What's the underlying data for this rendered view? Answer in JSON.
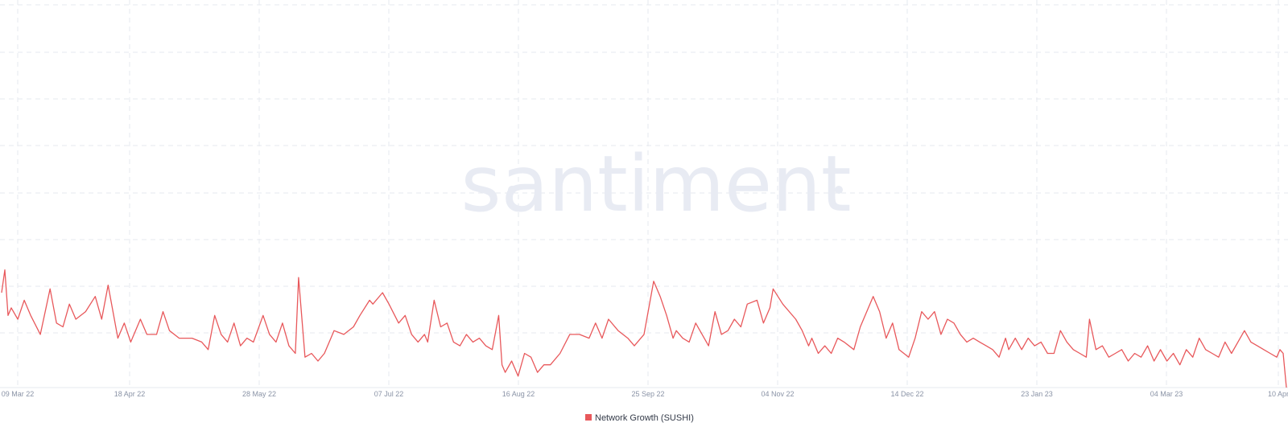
{
  "watermark": "santiment",
  "legend": {
    "label": "Network Growth (SUSHI)",
    "color": "#e8585b"
  },
  "colors": {
    "grid": "#e6e9ef",
    "tick_text": "#8a93a6",
    "watermark": "#e8ebf3"
  },
  "chart_data": {
    "type": "line",
    "xlabels": [
      "09 Mar 22",
      "18 Apr 22",
      "28 May 22",
      "07 Jul 22",
      "16 Aug 22",
      "25 Sep 22",
      "04 Nov 22",
      "14 Dec 22",
      "23 Jan 23",
      "04 Mar 23",
      "10 Apr"
    ],
    "x_range": [
      "2022-03-08",
      "2023-04-10"
    ],
    "ylim": [
      0,
      100
    ],
    "grid": true,
    "legend_position": "bottom-center",
    "series": [
      {
        "name": "Network Growth (SUSHI)",
        "color": "#e8585b",
        "points": [
          [
            "2022-03-08",
            25
          ],
          [
            "2022-03-09",
            31
          ],
          [
            "2022-03-10",
            19
          ],
          [
            "2022-03-11",
            21
          ],
          [
            "2022-03-13",
            18
          ],
          [
            "2022-03-15",
            23
          ],
          [
            "2022-03-17",
            19
          ],
          [
            "2022-03-20",
            14
          ],
          [
            "2022-03-23",
            26
          ],
          [
            "2022-03-25",
            17
          ],
          [
            "2022-03-27",
            16
          ],
          [
            "2022-03-29",
            22
          ],
          [
            "2022-03-31",
            18
          ],
          [
            "2022-04-03",
            20
          ],
          [
            "2022-04-06",
            24
          ],
          [
            "2022-04-08",
            18
          ],
          [
            "2022-04-10",
            27
          ],
          [
            "2022-04-13",
            13
          ],
          [
            "2022-04-15",
            17
          ],
          [
            "2022-04-17",
            12
          ],
          [
            "2022-04-20",
            18
          ],
          [
            "2022-04-22",
            14
          ],
          [
            "2022-04-25",
            14
          ],
          [
            "2022-04-27",
            20
          ],
          [
            "2022-04-29",
            15
          ],
          [
            "2022-05-02",
            13
          ],
          [
            "2022-05-06",
            13
          ],
          [
            "2022-05-09",
            12
          ],
          [
            "2022-05-11",
            10
          ],
          [
            "2022-05-13",
            19
          ],
          [
            "2022-05-15",
            14
          ],
          [
            "2022-05-17",
            12
          ],
          [
            "2022-05-19",
            17
          ],
          [
            "2022-05-21",
            11
          ],
          [
            "2022-05-23",
            13
          ],
          [
            "2022-05-25",
            12
          ],
          [
            "2022-05-28",
            19
          ],
          [
            "2022-05-30",
            14
          ],
          [
            "2022-06-01",
            12
          ],
          [
            "2022-06-03",
            17
          ],
          [
            "2022-06-05",
            11
          ],
          [
            "2022-06-07",
            9
          ],
          [
            "2022-06-08",
            29
          ],
          [
            "2022-06-10",
            8
          ],
          [
            "2022-06-12",
            9
          ],
          [
            "2022-06-14",
            7
          ],
          [
            "2022-06-16",
            9
          ],
          [
            "2022-06-19",
            15
          ],
          [
            "2022-06-22",
            14
          ],
          [
            "2022-06-25",
            16
          ],
          [
            "2022-06-27",
            19
          ],
          [
            "2022-06-30",
            23
          ],
          [
            "2022-07-01",
            22
          ],
          [
            "2022-07-04",
            25
          ],
          [
            "2022-07-06",
            22
          ],
          [
            "2022-07-09",
            17
          ],
          [
            "2022-07-11",
            19
          ],
          [
            "2022-07-13",
            14
          ],
          [
            "2022-07-15",
            12
          ],
          [
            "2022-07-17",
            14
          ],
          [
            "2022-07-18",
            12
          ],
          [
            "2022-07-20",
            23
          ],
          [
            "2022-07-22",
            16
          ],
          [
            "2022-07-24",
            17
          ],
          [
            "2022-07-26",
            12
          ],
          [
            "2022-07-28",
            11
          ],
          [
            "2022-07-30",
            14
          ],
          [
            "2022-08-01",
            12
          ],
          [
            "2022-08-03",
            13
          ],
          [
            "2022-08-05",
            11
          ],
          [
            "2022-08-07",
            10
          ],
          [
            "2022-08-09",
            19
          ],
          [
            "2022-08-10",
            6
          ],
          [
            "2022-08-11",
            4
          ],
          [
            "2022-08-13",
            7
          ],
          [
            "2022-08-15",
            3
          ],
          [
            "2022-08-17",
            9
          ],
          [
            "2022-08-19",
            8
          ],
          [
            "2022-08-21",
            4
          ],
          [
            "2022-08-23",
            6
          ],
          [
            "2022-08-25",
            6
          ],
          [
            "2022-08-28",
            9
          ],
          [
            "2022-08-31",
            14
          ],
          [
            "2022-09-03",
            14
          ],
          [
            "2022-09-06",
            13
          ],
          [
            "2022-09-08",
            17
          ],
          [
            "2022-09-10",
            13
          ],
          [
            "2022-09-12",
            18
          ],
          [
            "2022-09-15",
            15
          ],
          [
            "2022-09-18",
            13
          ],
          [
            "2022-09-20",
            11
          ],
          [
            "2022-09-23",
            14
          ],
          [
            "2022-09-26",
            28
          ],
          [
            "2022-09-28",
            24
          ],
          [
            "2022-09-30",
            19
          ],
          [
            "2022-10-02",
            13
          ],
          [
            "2022-10-03",
            15
          ],
          [
            "2022-10-05",
            13
          ],
          [
            "2022-10-07",
            12
          ],
          [
            "2022-10-09",
            17
          ],
          [
            "2022-10-11",
            14
          ],
          [
            "2022-10-13",
            11
          ],
          [
            "2022-10-15",
            20
          ],
          [
            "2022-10-17",
            14
          ],
          [
            "2022-10-19",
            15
          ],
          [
            "2022-10-21",
            18
          ],
          [
            "2022-10-23",
            16
          ],
          [
            "2022-10-25",
            22
          ],
          [
            "2022-10-28",
            23
          ],
          [
            "2022-10-30",
            17
          ],
          [
            "2022-11-01",
            21
          ],
          [
            "2022-11-02",
            26
          ],
          [
            "2022-11-05",
            22
          ],
          [
            "2022-11-09",
            18
          ],
          [
            "2022-11-11",
            15
          ],
          [
            "2022-11-13",
            11
          ],
          [
            "2022-11-14",
            13
          ],
          [
            "2022-11-16",
            9
          ],
          [
            "2022-11-18",
            11
          ],
          [
            "2022-11-20",
            9
          ],
          [
            "2022-11-22",
            13
          ],
          [
            "2022-11-24",
            12
          ],
          [
            "2022-11-27",
            10
          ],
          [
            "2022-11-29",
            16
          ],
          [
            "2022-12-01",
            20
          ],
          [
            "2022-12-03",
            24
          ],
          [
            "2022-12-05",
            20
          ],
          [
            "2022-12-07",
            13
          ],
          [
            "2022-12-09",
            17
          ],
          [
            "2022-12-11",
            10
          ],
          [
            "2022-12-14",
            8
          ],
          [
            "2022-12-16",
            13
          ],
          [
            "2022-12-18",
            20
          ],
          [
            "2022-12-20",
            18
          ],
          [
            "2022-12-22",
            20
          ],
          [
            "2022-12-24",
            14
          ],
          [
            "2022-12-26",
            18
          ],
          [
            "2022-12-28",
            17
          ],
          [
            "2022-12-30",
            14
          ],
          [
            "2023-01-01",
            12
          ],
          [
            "2023-01-03",
            13
          ],
          [
            "2023-01-05",
            12
          ],
          [
            "2023-01-07",
            11
          ],
          [
            "2023-01-09",
            10
          ],
          [
            "2023-01-11",
            8
          ],
          [
            "2023-01-13",
            13
          ],
          [
            "2023-01-14",
            10
          ],
          [
            "2023-01-16",
            13
          ],
          [
            "2023-01-18",
            10
          ],
          [
            "2023-01-20",
            13
          ],
          [
            "2023-01-22",
            11
          ],
          [
            "2023-01-24",
            12
          ],
          [
            "2023-01-26",
            9
          ],
          [
            "2023-01-28",
            9
          ],
          [
            "2023-01-30",
            15
          ],
          [
            "2023-02-01",
            12
          ],
          [
            "2023-02-03",
            10
          ],
          [
            "2023-02-05",
            9
          ],
          [
            "2023-02-07",
            8
          ],
          [
            "2023-02-08",
            18
          ],
          [
            "2023-02-10",
            10
          ],
          [
            "2023-02-12",
            11
          ],
          [
            "2023-02-14",
            8
          ],
          [
            "2023-02-16",
            9
          ],
          [
            "2023-02-18",
            10
          ],
          [
            "2023-02-20",
            7
          ],
          [
            "2023-02-22",
            9
          ],
          [
            "2023-02-24",
            8
          ],
          [
            "2023-02-26",
            11
          ],
          [
            "2023-02-28",
            7
          ],
          [
            "2023-03-02",
            10
          ],
          [
            "2023-03-04",
            7
          ],
          [
            "2023-03-06",
            9
          ],
          [
            "2023-03-08",
            6
          ],
          [
            "2023-03-10",
            10
          ],
          [
            "2023-03-12",
            8
          ],
          [
            "2023-03-14",
            13
          ],
          [
            "2023-03-16",
            10
          ],
          [
            "2023-03-18",
            9
          ],
          [
            "2023-03-20",
            8
          ],
          [
            "2023-03-22",
            12
          ],
          [
            "2023-03-24",
            9
          ],
          [
            "2023-03-26",
            12
          ],
          [
            "2023-03-28",
            15
          ],
          [
            "2023-03-30",
            12
          ],
          [
            "2023-04-01",
            11
          ],
          [
            "2023-04-03",
            10
          ],
          [
            "2023-04-05",
            9
          ],
          [
            "2023-04-07",
            8
          ],
          [
            "2023-04-08",
            10
          ],
          [
            "2023-04-09",
            9
          ],
          [
            "2023-04-10",
            0
          ]
        ]
      }
    ]
  }
}
